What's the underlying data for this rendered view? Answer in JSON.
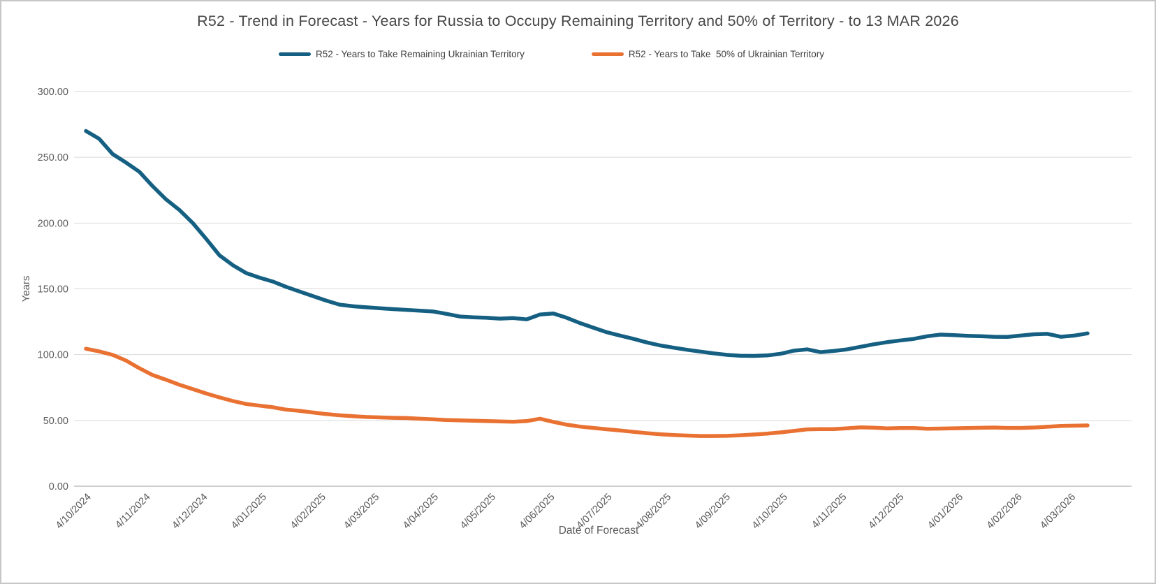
{
  "title": "R52 - Trend in Forecast - Years for Russia to Occupy Remaining Territory and 50% of Territory - to 13 MAR 2026",
  "colors": {
    "series_remaining": "#156082",
    "series_fifty_pct": "#E97132",
    "gridline": "#D9D9D9",
    "axis_line": "#BFBFBF",
    "tick_text": "#595959",
    "title_text": "#474747"
  },
  "chart_data": {
    "type": "line",
    "title": "R52 - Trend in Forecast - Years for Russia to Occupy Remaining Territory and 50% of Territory - to 13 MAR 2026",
    "xlabel": "Date of Forecast",
    "ylabel": "Years",
    "ylim": [
      0,
      300
    ],
    "grid": "horizontal",
    "legend_position": "top",
    "y_ticks": [
      0,
      50,
      100,
      150,
      200,
      250,
      300
    ],
    "y_tick_labels": [
      "0.00",
      "50.00",
      "100.00",
      "150.00",
      "200.00",
      "250.00",
      "300.00"
    ],
    "x_tick_labels": [
      "4/10/2024",
      "4/11/2024",
      "4/12/2024",
      "4/01/2025",
      "4/02/2025",
      "4/03/2025",
      "4/04/2025",
      "4/05/2025",
      "4/06/2025",
      "4/07/2025",
      "4/08/2025",
      "4/09/2025",
      "4/10/2025",
      "4/11/2025",
      "4/12/2025",
      "4/01/2026",
      "4/02/2026",
      "4/03/2026"
    ],
    "x_tick_weeks": [
      0,
      4.43,
      8.71,
      13.14,
      17.57,
      21.57,
      26,
      30.29,
      34.71,
      39,
      43.43,
      47.86,
      52.14,
      56.57,
      60.86,
      65.29,
      69.71,
      73.71
    ],
    "x_unit": "weekly forecast points, week 0 = 4/10/2024, last point = 13 MAR 2026 (week 75)",
    "series": [
      {
        "name": "R52 - Years to Take Remaining Ukrainian Territory",
        "color": "#156082",
        "values": [
          270,
          264,
          252.5,
          246,
          239,
          228,
          218,
          210,
          200,
          188,
          175.5,
          168,
          162,
          158.5,
          155.5,
          151.5,
          148,
          144.5,
          141,
          138,
          136.8,
          136,
          135.3,
          134.6,
          134,
          133.4,
          132.8,
          131,
          129,
          128.4,
          128,
          127.4,
          127.8,
          126.8,
          130.5,
          131.3,
          128,
          124,
          120.5,
          117,
          114.5,
          112,
          109.3,
          107,
          105.3,
          103.7,
          102.3,
          101,
          99.8,
          99.2,
          99,
          99.4,
          100.6,
          103,
          104,
          101.9,
          102.8,
          104,
          106,
          107.9,
          109.5,
          110.8,
          112,
          114,
          115.2,
          114.8,
          114.3,
          114,
          113.6,
          113.5,
          114.5,
          115.5,
          115.8,
          113.6,
          114.5,
          116.2
        ]
      },
      {
        "name": "R52 - Years to Take  50% of Ukrainian Territory",
        "color": "#E97132",
        "values": [
          104.5,
          102.4,
          99.8,
          95.5,
          89.7,
          84.5,
          80.9,
          77.1,
          73.8,
          70.5,
          67.5,
          64.8,
          62.5,
          61.2,
          60,
          58.2,
          57.3,
          56,
          54.8,
          53.9,
          53.2,
          52.6,
          52.3,
          52,
          51.8,
          51.3,
          50.8,
          50.3,
          50,
          49.8,
          49.5,
          49.3,
          49,
          49.5,
          51.3,
          48.9,
          46.8,
          45.3,
          44.3,
          43.3,
          42.3,
          41.3,
          40.3,
          39.5,
          38.9,
          38.5,
          38.2,
          38.2,
          38.3,
          38.7,
          39.3,
          40,
          40.9,
          42,
          43.2,
          43.4,
          43.4,
          44,
          44.7,
          44.5,
          43.9,
          44.2,
          44.2,
          43.7,
          43.8,
          44,
          44.2,
          44.4,
          44.6,
          44.3,
          44.3,
          44.6,
          45.2,
          45.8,
          46,
          46.2
        ]
      }
    ]
  }
}
